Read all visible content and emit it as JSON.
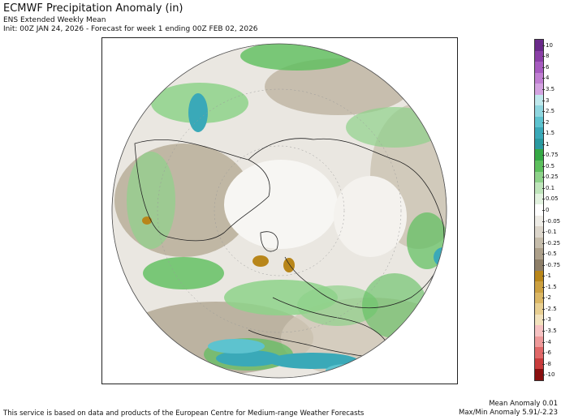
{
  "header": {
    "title": "ECMWF Precipitation Anomaly (in)",
    "subtitle": "ENS Extended Weekly Mean",
    "init_line": "Init: 00Z JAN 24, 2026 - Forecast for week 1 ending 00Z FEB 02, 2026"
  },
  "colorbar": {
    "labels": [
      "10",
      "8",
      "6",
      "4",
      "3.5",
      "3",
      "2.5",
      "2",
      "1.5",
      "1",
      "0.75",
      "0.5",
      "0.25",
      "0.1",
      "0.05",
      "0",
      "-0.05",
      "-0.1",
      "-0.25",
      "-0.5",
      "-0.75",
      "-1",
      "-1.5",
      "-2",
      "-2.5",
      "-3",
      "-3.5",
      "-4",
      "-6",
      "-8",
      "-10"
    ],
    "colors": [
      "#6a2a8a",
      "#8a3fa6",
      "#a65bbf",
      "#c07fd2",
      "#d3a3e0",
      "#bfe8ec",
      "#8fd6df",
      "#5dc3cf",
      "#3aa9b8",
      "#2a9aa0",
      "#35a845",
      "#5dbf5d",
      "#8ed28a",
      "#bfe5bb",
      "#e2f2df",
      "#ffffff",
      "#eeece6",
      "#dcd6cb",
      "#c6bdab",
      "#ada08a",
      "#8e7f68",
      "#b8861a",
      "#cca040",
      "#dbb765",
      "#e8cf92",
      "#f2e2bd",
      "#f6c2c2",
      "#ee9a9a",
      "#e06868",
      "#c83c3c",
      "#8a0f0f"
    ]
  },
  "footer": {
    "attribution": "This service is based on data and products of the European Centre for Medium-range Weather Forecasts",
    "mean_anomaly": "Mean Anomaly 0.01",
    "maxmin_anomaly": "Max/Min Anomaly 5.91/-2.23"
  }
}
